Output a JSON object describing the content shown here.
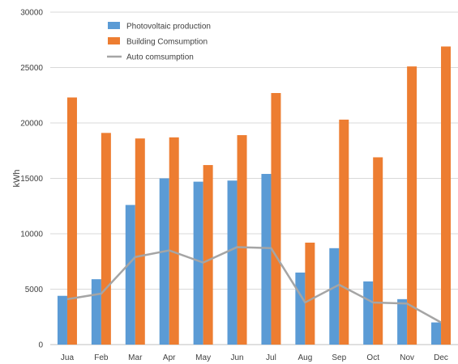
{
  "chart_data": {
    "type": "bar",
    "categories": [
      "Jua",
      "Feb",
      "Mar",
      "Apr",
      "May",
      "Jun",
      "Jul",
      "Aug",
      "Sep",
      "Oct",
      "Nov",
      "Dec"
    ],
    "series": [
      {
        "name": "Photovoltaic production",
        "type": "bar",
        "color": "#5B9BD5",
        "values": [
          4400,
          5900,
          12600,
          15000,
          14700,
          14800,
          15400,
          6500,
          8700,
          5700,
          4100,
          2000
        ]
      },
      {
        "name": "Building Comsumption",
        "type": "bar",
        "color": "#ED7D31",
        "values": [
          22300,
          19100,
          18600,
          18700,
          16200,
          18900,
          22700,
          9200,
          20300,
          16900,
          25100,
          26900
        ]
      },
      {
        "name": "Auto comsumption",
        "type": "line",
        "color": "#A5A5A5",
        "values": [
          4100,
          4600,
          7900,
          8500,
          7400,
          8800,
          8700,
          3800,
          5400,
          3800,
          3700,
          2000
        ]
      }
    ],
    "ylabel": "kWh",
    "ylim": [
      0,
      30000
    ],
    "yticks": [
      "0",
      "5000",
      "10000",
      "15000",
      "20000",
      "25000",
      "30000"
    ],
    "grid": true,
    "legend_position": "top-left"
  }
}
